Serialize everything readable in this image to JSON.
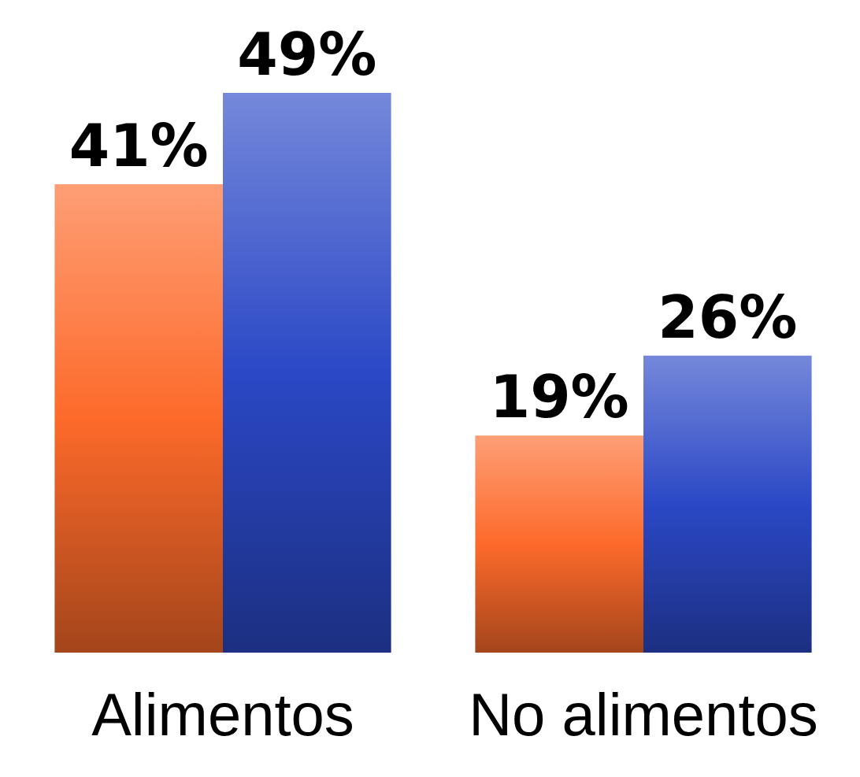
{
  "chart_data": {
    "type": "bar",
    "categories": [
      "Alimentos",
      "No alimentos"
    ],
    "series": [
      {
        "color": "#fd6a2a",
        "values": [
          41,
          19
        ],
        "value_labels": [
          "41%",
          "19%"
        ]
      },
      {
        "color": "#2b48c6",
        "values": [
          49,
          26
        ],
        "value_labels": [
          "49%",
          "26%"
        ]
      }
    ]
  }
}
